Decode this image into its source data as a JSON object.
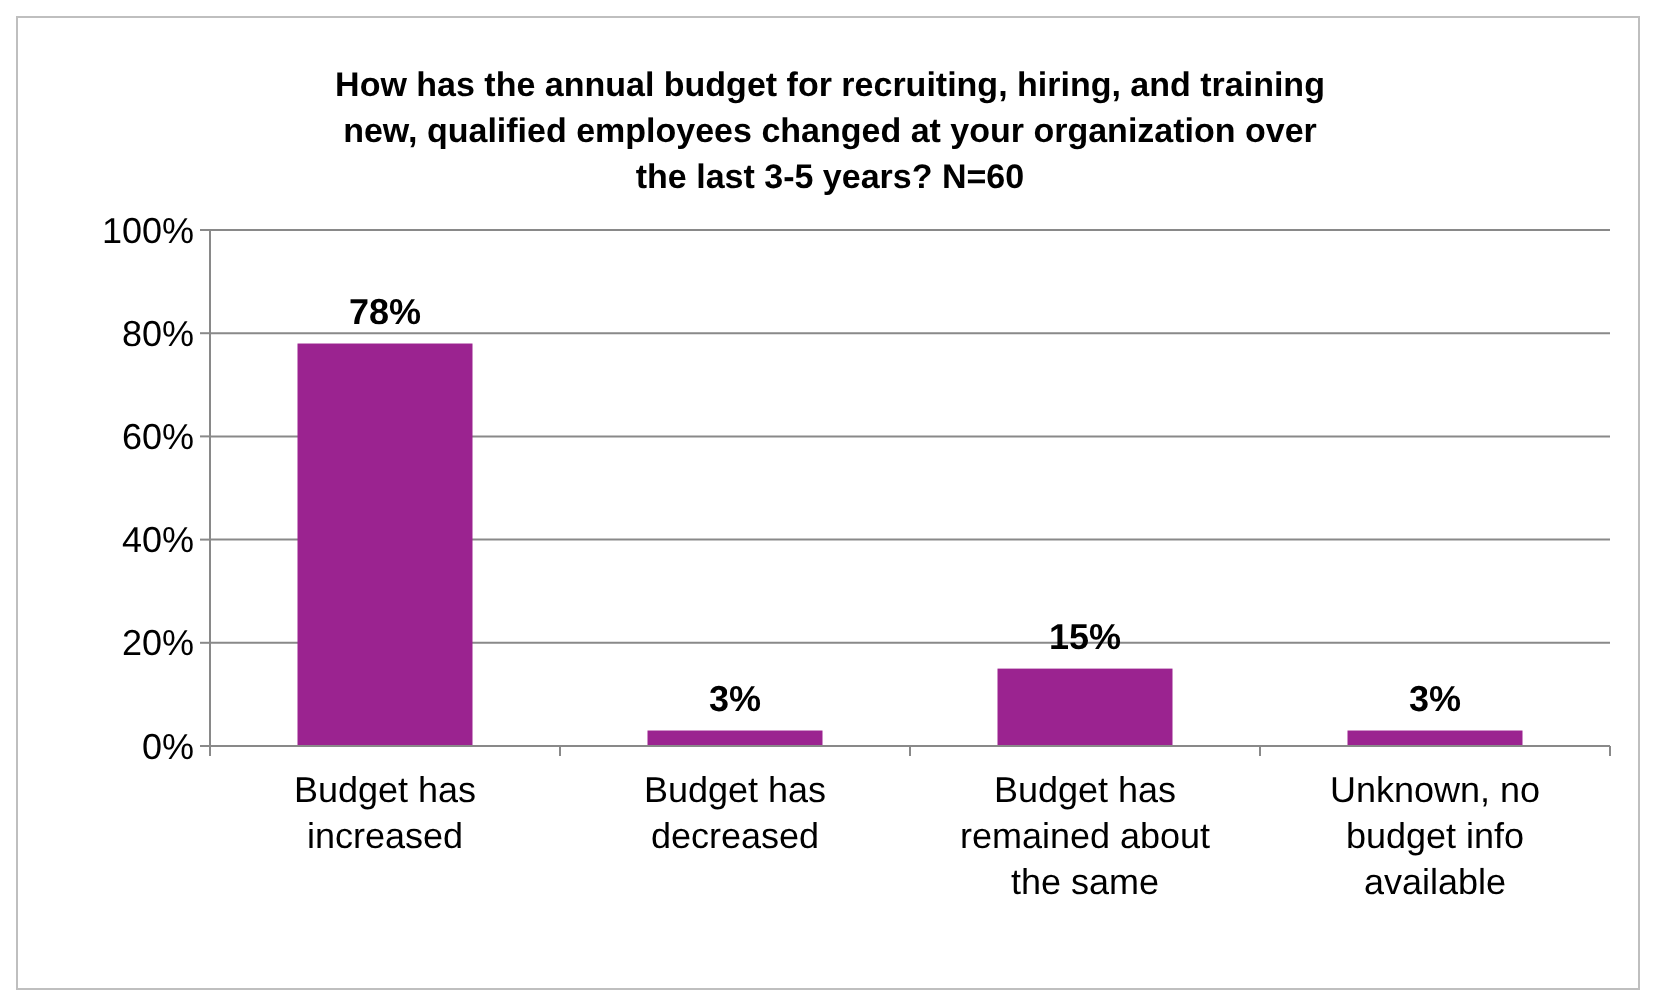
{
  "chart_data": {
    "type": "bar",
    "title": "How has the annual budget for recruiting, hiring, and training new, qualified employees changed at your organization over the last 3-5 years?  N=60",
    "categories": [
      "Budget has increased",
      "Budget has decreased",
      "Budget has remained about the same",
      "Unknown, no budget info available"
    ],
    "values": [
      78,
      3,
      15,
      3
    ],
    "color": "#9b2390",
    "value_labels": [
      "78%",
      "3%",
      "15%",
      "3%"
    ],
    "ylim": [
      0,
      100
    ],
    "yticks": [
      {
        "value": 0,
        "label": "0%"
      },
      {
        "value": 20,
        "label": "20%"
      },
      {
        "value": 40,
        "label": "40%"
      },
      {
        "value": 60,
        "label": "60%"
      },
      {
        "value": 80,
        "label": "80%"
      },
      {
        "value": 100,
        "label": "100%"
      }
    ],
    "grid": "y"
  }
}
